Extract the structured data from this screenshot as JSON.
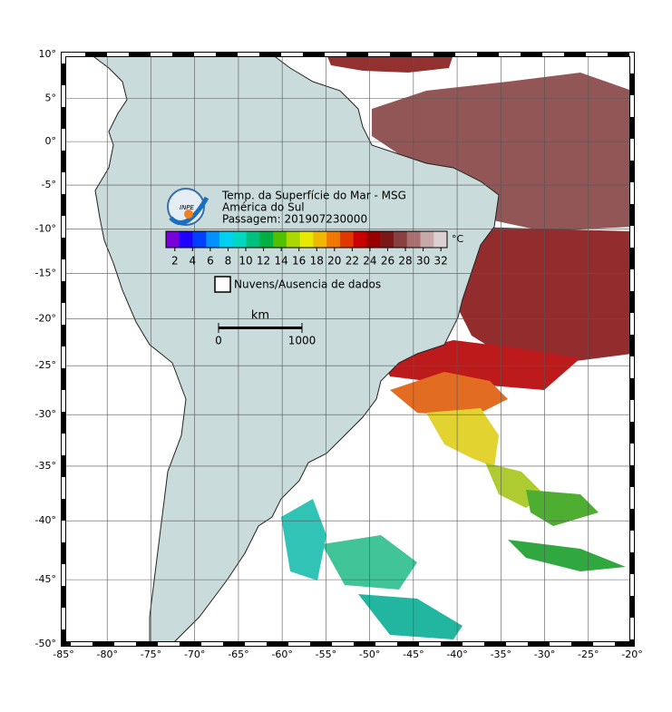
{
  "title": {
    "lines": [
      "Temp. da Superfície do Mar - MSG",
      "América do Sul",
      "Passagem: 201907230000"
    ],
    "logo": "INPE"
  },
  "colorbar": {
    "unit": "°C",
    "range": [
      1,
      32.7
    ],
    "ticks": [
      2,
      4,
      6,
      8,
      10,
      12,
      14,
      16,
      18,
      20,
      22,
      24,
      26,
      28,
      30,
      32
    ],
    "colors": [
      "#7800d8",
      "#2000ff",
      "#0040ff",
      "#0090ff",
      "#00d0f0",
      "#00d8c0",
      "#00c080",
      "#00b040",
      "#50c000",
      "#a8d800",
      "#e8e800",
      "#f0b800",
      "#f07800",
      "#e03800",
      "#c80000",
      "#980000",
      "#7a1818",
      "#8a4040",
      "#a87070",
      "#c8a8a8",
      "#dcd0d0"
    ]
  },
  "legend": {
    "label": "Nuvens/Ausencia de dados"
  },
  "scale_bar": {
    "unit": "km",
    "ticks": [
      0,
      1000
    ]
  },
  "map": {
    "lon_range": [
      -85,
      -20
    ],
    "lat_range": [
      -50,
      10
    ],
    "grid": true,
    "lon_ticks": [
      {
        "value": -85,
        "label": "-85°"
      },
      {
        "value": -80,
        "label": "-80°"
      },
      {
        "value": -75,
        "label": "-75°"
      },
      {
        "value": -70,
        "label": "-70°"
      },
      {
        "value": -65,
        "label": "-65°"
      },
      {
        "value": -60,
        "label": "-60°"
      },
      {
        "value": -55,
        "label": "-55°"
      },
      {
        "value": -50,
        "label": "-50°"
      },
      {
        "value": -45,
        "label": "-45°"
      },
      {
        "value": -40,
        "label": "-40°"
      },
      {
        "value": -35,
        "label": "-35°"
      },
      {
        "value": -30,
        "label": "-30°"
      },
      {
        "value": -25,
        "label": "-25°"
      },
      {
        "value": -20,
        "label": "-20°"
      }
    ],
    "lat_ticks": [
      {
        "value": 10,
        "label": "10°"
      },
      {
        "value": 5,
        "label": "5°"
      },
      {
        "value": 0,
        "label": "0°"
      },
      {
        "value": -5,
        "label": "-5°"
      },
      {
        "value": -10,
        "label": "-10°"
      },
      {
        "value": -15,
        "label": "-15°"
      },
      {
        "value": -20,
        "label": "-20°"
      },
      {
        "value": -25,
        "label": "-25°"
      },
      {
        "value": -30,
        "label": "-30°"
      },
      {
        "value": -35,
        "label": "-35°"
      },
      {
        "value": -40,
        "label": "-40°"
      },
      {
        "value": -45,
        "label": "-45°"
      },
      {
        "value": -50,
        "label": "-50°"
      }
    ]
  }
}
